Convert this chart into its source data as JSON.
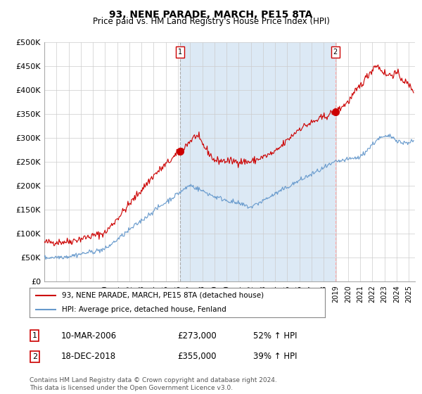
{
  "title": "93, NENE PARADE, MARCH, PE15 8TA",
  "subtitle": "Price paid vs. HM Land Registry's House Price Index (HPI)",
  "ylim": [
    0,
    500000
  ],
  "yticks": [
    0,
    50000,
    100000,
    150000,
    200000,
    250000,
    300000,
    350000,
    400000,
    450000,
    500000
  ],
  "ytick_labels": [
    "£0",
    "£50K",
    "£100K",
    "£150K",
    "£200K",
    "£250K",
    "£300K",
    "£350K",
    "£400K",
    "£450K",
    "£500K"
  ],
  "red_color": "#cc0000",
  "blue_color": "#6699cc",
  "xlim_start": 1995,
  "xlim_end": 2025.5,
  "marker1_x": 2006.17,
  "marker1_y": 273000,
  "marker2_x": 2018.96,
  "marker2_y": 355000,
  "annotation1": [
    "1",
    "10-MAR-2006",
    "£273,000",
    "52% ↑ HPI"
  ],
  "annotation2": [
    "2",
    "18-DEC-2018",
    "£355,000",
    "39% ↑ HPI"
  ],
  "legend_line1": "93, NENE PARADE, MARCH, PE15 8TA (detached house)",
  "legend_line2": "HPI: Average price, detached house, Fenland",
  "footer": "Contains HM Land Registry data © Crown copyright and database right 2024.\nThis data is licensed under the Open Government Licence v3.0.",
  "bg_color": "#ffffff",
  "grid_color": "#cccccc",
  "shade_color": "#dce9f5"
}
